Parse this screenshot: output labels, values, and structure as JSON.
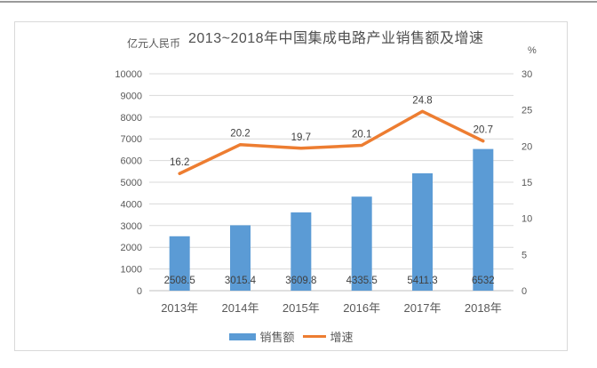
{
  "chart": {
    "unit_label_left": "亿元人民币",
    "unit_label_right": "%",
    "title": "2013~2018年中国集成电路产业销售额及增速"
  },
  "chart_data": {
    "type": "bar+line combo",
    "title": "2013~2018年中国集成电路产业销售额及增速",
    "categories": [
      "2013年",
      "2014年",
      "2015年",
      "2016年",
      "2017年",
      "2018年"
    ],
    "series": [
      {
        "name": "销售额",
        "type": "bar",
        "axis": "left",
        "color": "#5B9BD5",
        "values": [
          2508.5,
          3015.4,
          3609.8,
          4335.5,
          5411.3,
          6532
        ],
        "labels": [
          "2508.5",
          "3015.4",
          "3609.8",
          "4335.5",
          "5411.3",
          "6532"
        ]
      },
      {
        "name": "增速",
        "type": "line",
        "axis": "right",
        "color": "#ED7D31",
        "values": [
          16.2,
          20.2,
          19.7,
          20.1,
          24.8,
          20.7
        ],
        "labels": [
          "16.2",
          "20.2",
          "19.7",
          "20.1",
          "24.8",
          "20.7"
        ]
      }
    ],
    "left_axis": {
      "label": "亿元人民币",
      "min": 0,
      "max": 10000,
      "step": 1000,
      "ticks": [
        "0",
        "1000",
        "2000",
        "3000",
        "4000",
        "5000",
        "6000",
        "7000",
        "8000",
        "9000",
        "10000"
      ]
    },
    "right_axis": {
      "label": "%",
      "min": 0,
      "max": 30,
      "step": 5,
      "ticks": [
        "0",
        "5",
        "10",
        "15",
        "20",
        "25",
        "30"
      ]
    },
    "grid": true,
    "legend_position": "bottom",
    "colors": {
      "bar": "#5B9BD5",
      "line": "#ED7D31",
      "gridline": "#D9D9D9",
      "axis_text": "#595959",
      "data_label_text": "#404040"
    }
  }
}
